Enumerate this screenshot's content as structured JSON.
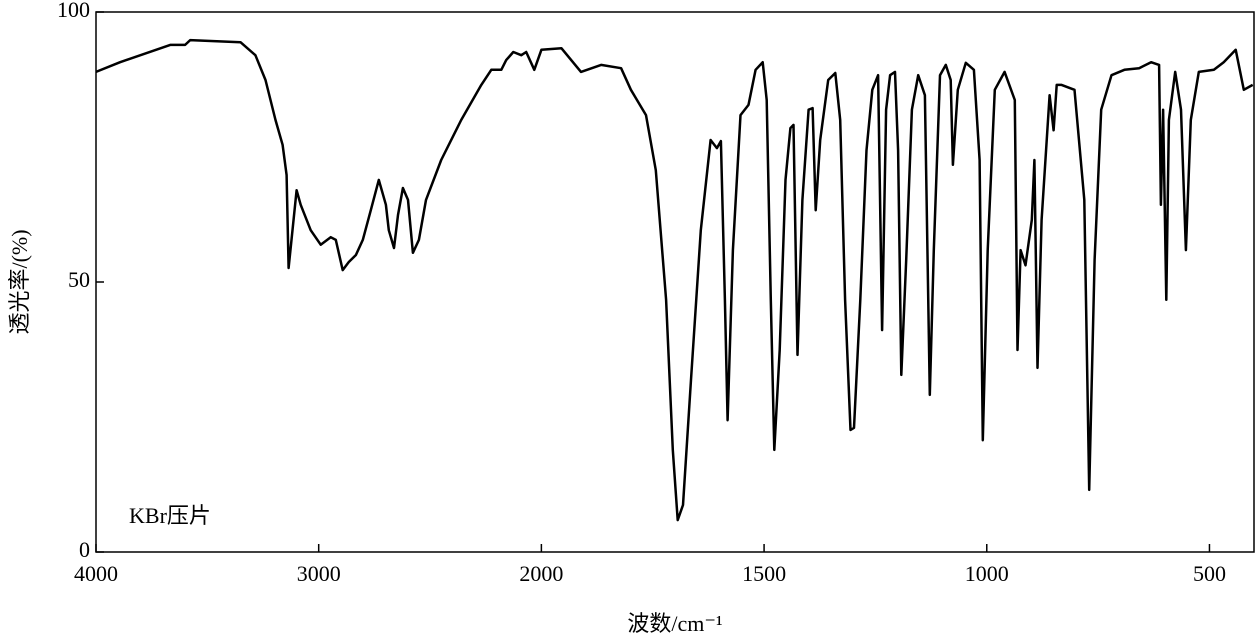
{
  "chart_data": {
    "type": "line",
    "x_label": "波数/cm⁻¹",
    "y_label": "透光率/(%)",
    "annotation": "KBr压片",
    "xlim": [
      4000,
      400
    ],
    "xticks": [
      4000,
      3000,
      2000,
      1500,
      1000,
      500
    ],
    "x_scale": "piecewise",
    "ylim": [
      0,
      100
    ],
    "yticks": [
      0,
      50,
      100
    ],
    "grid": false,
    "series": [
      {
        "name": null,
        "color": "#000000",
        "x": [
          4000,
          3892,
          3667,
          3600,
          3577,
          3351,
          3284,
          3239,
          3194,
          3162,
          3144,
          3135,
          3122,
          3099,
          3081,
          3036,
          2991,
          2946,
          2923,
          2892,
          2865,
          2833,
          2802,
          2766,
          2730,
          2698,
          2685,
          2662,
          2644,
          2622,
          2599,
          2577,
          2550,
          2518,
          2450,
          2360,
          2270,
          2225,
          2180,
          2158,
          2126,
          2090,
          2068,
          2032,
          2000,
          1955,
          1911,
          1866,
          1821,
          1799,
          1765,
          1743,
          1720,
          1705,
          1694,
          1682,
          1664,
          1642,
          1620,
          1606,
          1597,
          1588,
          1582,
          1570,
          1553,
          1535,
          1519,
          1503,
          1494,
          1485,
          1477,
          1465,
          1452,
          1441,
          1434,
          1425,
          1414,
          1400,
          1391,
          1384,
          1374,
          1356,
          1340,
          1329,
          1318,
          1306,
          1298,
          1284,
          1270,
          1257,
          1244,
          1235,
          1226,
          1217,
          1206,
          1199,
          1192,
          1181,
          1168,
          1154,
          1139,
          1128,
          1119,
          1105,
          1092,
          1081,
          1076,
          1065,
          1047,
          1029,
          1016,
          1009,
          998,
          982,
          960,
          937,
          931,
          924,
          913,
          899,
          893,
          886,
          877,
          859,
          850,
          843,
          832,
          803,
          781,
          770,
          758,
          743,
          720,
          691,
          658,
          631,
          613,
          609,
          604,
          597,
          591,
          577,
          564,
          553,
          542,
          524,
          490,
          468,
          441,
          423,
          403
        ],
        "values": [
          88.9,
          90.7,
          93.9,
          93.9,
          94.8,
          94.4,
          92,
          87.4,
          80,
          75.4,
          69.8,
          52.6,
          57.8,
          67,
          64.3,
          59.6,
          56.9,
          58.3,
          57.8,
          52.2,
          53.7,
          55,
          57.8,
          63.3,
          68.9,
          64.3,
          59.6,
          56.3,
          62.4,
          67.4,
          65.2,
          55.4,
          57.8,
          65.2,
          72.6,
          80,
          86.5,
          89.3,
          89.3,
          91.1,
          92.6,
          92,
          92.6,
          89.3,
          93,
          93.3,
          88.9,
          90.2,
          89.6,
          85.6,
          80.9,
          70.7,
          46.7,
          18.9,
          5.9,
          8.7,
          31.9,
          59.6,
          76.3,
          74.8,
          76.1,
          46.7,
          24.4,
          55.9,
          80.9,
          82.8,
          89.3,
          90.7,
          83.7,
          46.7,
          18.9,
          37.4,
          68.9,
          78.5,
          79.1,
          36.5,
          65.2,
          81.9,
          82.2,
          63.3,
          76.3,
          87.4,
          88.7,
          80,
          46.7,
          22.6,
          23,
          46.7,
          74.4,
          85.6,
          88.3,
          41.1,
          81.9,
          88.3,
          88.9,
          74.4,
          32.8,
          54.1,
          81.9,
          88.3,
          84.6,
          29.1,
          55.9,
          88.3,
          90.2,
          87.4,
          71.7,
          85.6,
          90.6,
          89.3,
          72.6,
          20.7,
          55.9,
          85.6,
          88.9,
          83.7,
          37.4,
          55.9,
          53.1,
          61.5,
          72.6,
          34.1,
          61.5,
          84.6,
          78.1,
          86.5,
          86.5,
          85.6,
          65.2,
          11.5,
          54.1,
          81.9,
          88.3,
          89.3,
          89.6,
          90.7,
          90.2,
          64.3,
          81.9,
          46.7,
          80,
          88.9,
          81.9,
          55.9,
          80,
          88.9,
          89.3,
          90.7,
          93,
          85.6,
          86.5
        ]
      }
    ]
  }
}
